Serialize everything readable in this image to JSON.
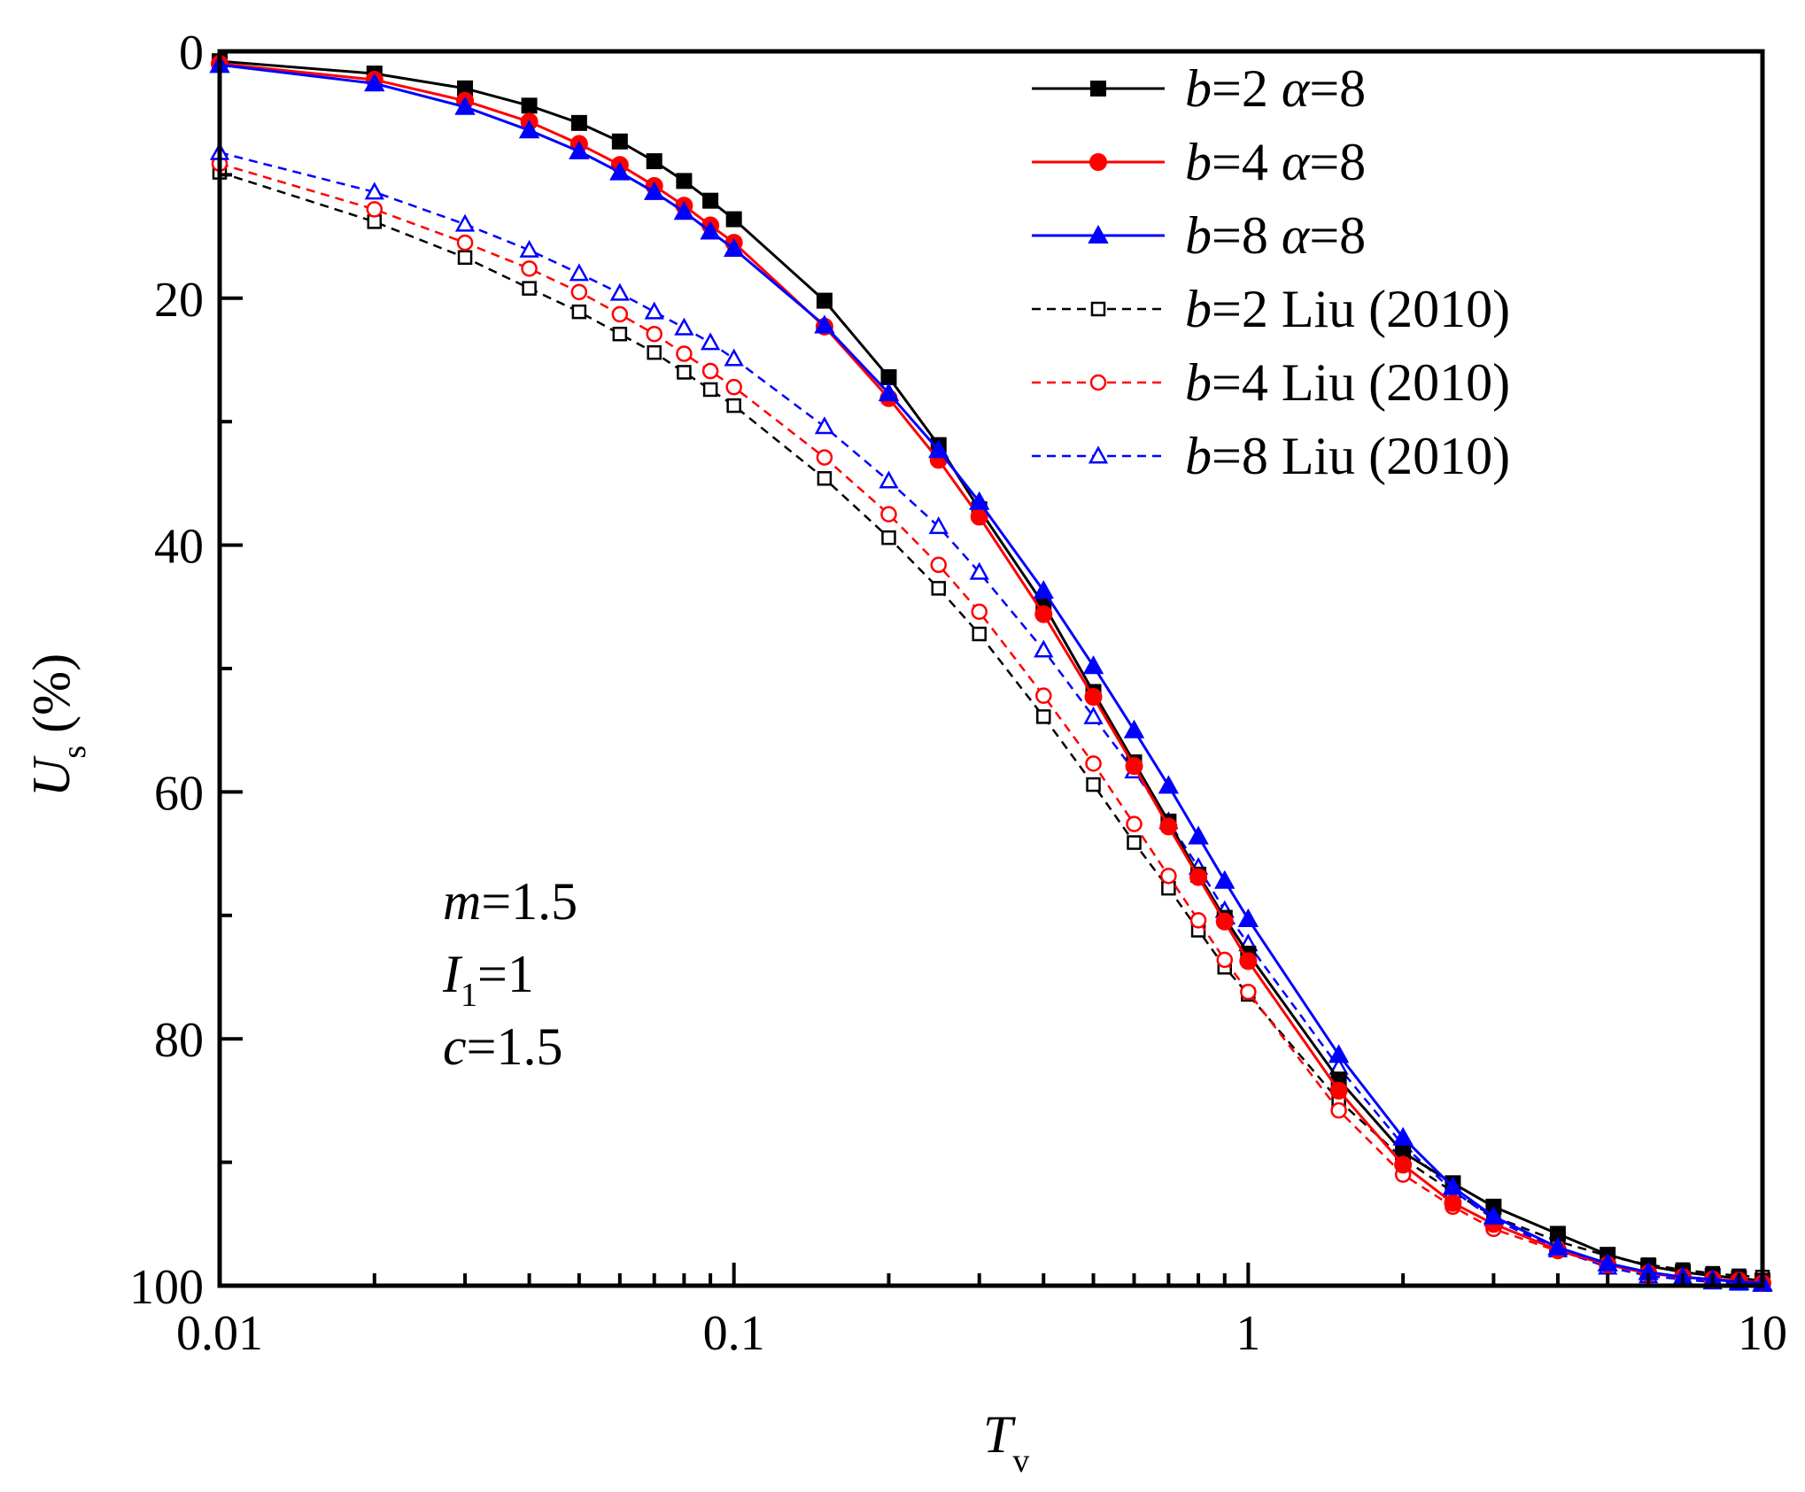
{
  "chart_data": {
    "type": "line",
    "xscale": "log",
    "xlim": [
      0.01,
      10
    ],
    "ylim": [
      0,
      100
    ],
    "y_inverted": true,
    "xlabel": {
      "main": "T",
      "sub": "v"
    },
    "ylabel": {
      "main": "U",
      "sub": "s",
      "unit": "(%)"
    },
    "xticks": [
      {
        "value": 0.01,
        "label": "0.01"
      },
      {
        "value": 0.1,
        "label": "0.1"
      },
      {
        "value": 1,
        "label": "1"
      },
      {
        "value": 10,
        "label": "10"
      }
    ],
    "yticks": [
      {
        "value": 0,
        "label": "0"
      },
      {
        "value": 20,
        "label": "20"
      },
      {
        "value": 40,
        "label": "40"
      },
      {
        "value": 60,
        "label": "60"
      },
      {
        "value": 80,
        "label": "80"
      },
      {
        "value": 100,
        "label": "100"
      }
    ],
    "x": [
      0.01,
      0.02,
      0.03,
      0.04,
      0.05,
      0.06,
      0.07,
      0.08,
      0.09,
      0.1,
      0.15,
      0.2,
      0.25,
      0.3,
      0.4,
      0.5,
      0.6,
      0.7,
      0.8,
      0.9,
      1,
      1.5,
      2,
      2.5,
      3,
      4,
      5,
      6,
      7,
      8,
      9,
      10
    ],
    "series": [
      {
        "name": "b=2 α=8",
        "legend": {
          "var": "b",
          "text": "=2 ",
          "greek": "α",
          "rest": "=8"
        },
        "color": "#000000",
        "dash": "solid",
        "marker": "square",
        "filled": true,
        "values": [
          0.8,
          1.8,
          3,
          4.4,
          5.8,
          7.3,
          8.9,
          10.5,
          12.1,
          13.6,
          20.2,
          26.4,
          31.9,
          37.1,
          44.8,
          51.9,
          57.6,
          62.4,
          66.7,
          70.2,
          73.1,
          83.3,
          89.2,
          91.7,
          93.6,
          95.8,
          97.5,
          98.4,
          98.9,
          99.2,
          99.4,
          99.6
        ]
      },
      {
        "name": "b=4 α=8",
        "legend": {
          "var": "b",
          "text": "=4 ",
          "greek": "α",
          "rest": "=8"
        },
        "color": "#ff0000",
        "dash": "solid",
        "marker": "circle",
        "filled": true,
        "values": [
          1,
          2.3,
          4,
          5.7,
          7.5,
          9.2,
          10.9,
          12.5,
          14.1,
          15.5,
          22.3,
          28.1,
          33.1,
          37.7,
          45.6,
          52.3,
          57.9,
          62.8,
          66.9,
          70.5,
          73.7,
          84.2,
          90.2,
          93.3,
          95,
          97.1,
          98.3,
          99,
          99.3,
          99.5,
          99.6,
          99.8
        ]
      },
      {
        "name": "b=8 α=8",
        "legend": {
          "var": "b",
          "text": "=8 ",
          "greek": "α",
          "rest": "=8"
        },
        "color": "#0000ff",
        "dash": "solid",
        "marker": "triangle",
        "filled": true,
        "values": [
          1.1,
          2.6,
          4.5,
          6.4,
          8.1,
          9.8,
          11.4,
          13,
          14.6,
          16,
          22.2,
          27.7,
          32.3,
          36.5,
          43.7,
          49.8,
          55,
          59.5,
          63.6,
          67.2,
          70.3,
          81.3,
          88,
          92,
          94.4,
          96.9,
          98.2,
          98.9,
          99.3,
          99.5,
          99.7,
          99.8
        ]
      },
      {
        "name": "b=2 Liu (2010)",
        "legend": {
          "var": "b",
          "text": "=2 Liu (2010)",
          "greek": "",
          "rest": ""
        },
        "color": "#000000",
        "dash": "dashed",
        "marker": "square",
        "filled": false,
        "values": [
          9.8,
          13.8,
          16.7,
          19.2,
          21.1,
          22.9,
          24.4,
          26,
          27.4,
          28.7,
          34.6,
          39.4,
          43.5,
          47.2,
          53.9,
          59.4,
          64.1,
          67.8,
          71.2,
          74.2,
          76.4,
          85,
          89.7,
          92.4,
          94.4,
          96.4,
          97.6,
          98.3,
          98.7,
          99,
          99.2,
          99.3
        ]
      },
      {
        "name": "b=4 Liu (2010)",
        "legend": {
          "var": "b",
          "text": "=4 Liu (2010)",
          "greek": "",
          "rest": ""
        },
        "color": "#ff0000",
        "dash": "dashed",
        "marker": "circle",
        "filled": false,
        "values": [
          9.1,
          12.8,
          15.5,
          17.6,
          19.5,
          21.3,
          22.9,
          24.5,
          25.9,
          27.2,
          32.9,
          37.5,
          41.6,
          45.4,
          52.2,
          57.7,
          62.6,
          66.8,
          70.4,
          73.6,
          76.2,
          85.8,
          91,
          93.6,
          95.4,
          97.2,
          98.3,
          98.9,
          99.3,
          99.5,
          99.6,
          99.7
        ]
      },
      {
        "name": "b=8 Liu (2010)",
        "legend": {
          "var": "b",
          "text": "=8 Liu (2010)",
          "greek": "",
          "rest": ""
        },
        "color": "#0000ff",
        "dash": "dashed",
        "marker": "triangle",
        "filled": false,
        "values": [
          8.2,
          11.4,
          14,
          16.1,
          18,
          19.6,
          21.1,
          22.4,
          23.6,
          24.9,
          30.4,
          34.8,
          38.5,
          42.2,
          48.5,
          53.9,
          58.3,
          62.4,
          66.1,
          69.6,
          72.3,
          82.3,
          88.6,
          92.3,
          94.6,
          97.1,
          98.5,
          99.2,
          99.5,
          99.7,
          99.8,
          99.9
        ]
      }
    ],
    "annotations": [
      {
        "var": "m",
        "sub": "",
        "value": "=1.5"
      },
      {
        "var": "I",
        "sub": "1",
        "value": "=1"
      },
      {
        "var": "c",
        "sub": "",
        "value": "=1.5"
      }
    ],
    "legend_position": "top-right"
  }
}
